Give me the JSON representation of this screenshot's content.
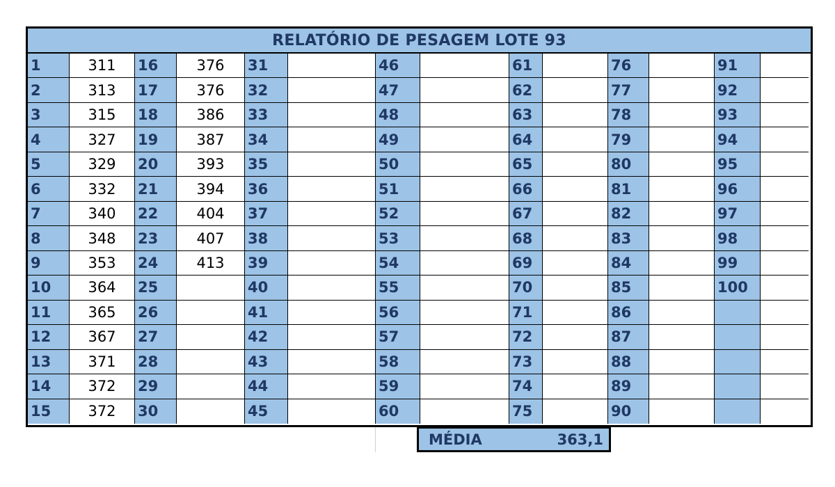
{
  "title": "RELATÓRIO DE PESAGEM LOTE 93",
  "colors": {
    "header_bg": "#9dc3e6",
    "header_text": "#1f3864",
    "border": "#000000"
  },
  "rows": [
    [
      {
        "n": "1",
        "v": "311"
      },
      {
        "n": "16",
        "v": "376"
      },
      {
        "n": "31",
        "v": ""
      },
      {
        "n": "46",
        "v": ""
      },
      {
        "n": "61",
        "v": ""
      },
      {
        "n": "76",
        "v": ""
      },
      {
        "n": "91",
        "v": ""
      }
    ],
    [
      {
        "n": "2",
        "v": "313"
      },
      {
        "n": "17",
        "v": "376"
      },
      {
        "n": "32",
        "v": ""
      },
      {
        "n": "47",
        "v": ""
      },
      {
        "n": "62",
        "v": ""
      },
      {
        "n": "77",
        "v": ""
      },
      {
        "n": "92",
        "v": ""
      }
    ],
    [
      {
        "n": "3",
        "v": "315"
      },
      {
        "n": "18",
        "v": "386"
      },
      {
        "n": "33",
        "v": ""
      },
      {
        "n": "48",
        "v": ""
      },
      {
        "n": "63",
        "v": ""
      },
      {
        "n": "78",
        "v": ""
      },
      {
        "n": "93",
        "v": ""
      }
    ],
    [
      {
        "n": "4",
        "v": "327"
      },
      {
        "n": "19",
        "v": "387"
      },
      {
        "n": "34",
        "v": ""
      },
      {
        "n": "49",
        "v": ""
      },
      {
        "n": "64",
        "v": ""
      },
      {
        "n": "79",
        "v": ""
      },
      {
        "n": "94",
        "v": ""
      }
    ],
    [
      {
        "n": "5",
        "v": "329"
      },
      {
        "n": "20",
        "v": "393"
      },
      {
        "n": "35",
        "v": ""
      },
      {
        "n": "50",
        "v": ""
      },
      {
        "n": "65",
        "v": ""
      },
      {
        "n": "80",
        "v": ""
      },
      {
        "n": "95",
        "v": ""
      }
    ],
    [
      {
        "n": "6",
        "v": "332"
      },
      {
        "n": "21",
        "v": "394"
      },
      {
        "n": "36",
        "v": ""
      },
      {
        "n": "51",
        "v": ""
      },
      {
        "n": "66",
        "v": ""
      },
      {
        "n": "81",
        "v": ""
      },
      {
        "n": "96",
        "v": ""
      }
    ],
    [
      {
        "n": "7",
        "v": "340"
      },
      {
        "n": "22",
        "v": "404"
      },
      {
        "n": "37",
        "v": ""
      },
      {
        "n": "52",
        "v": ""
      },
      {
        "n": "67",
        "v": ""
      },
      {
        "n": "82",
        "v": ""
      },
      {
        "n": "97",
        "v": ""
      }
    ],
    [
      {
        "n": "8",
        "v": "348"
      },
      {
        "n": "23",
        "v": "407"
      },
      {
        "n": "38",
        "v": ""
      },
      {
        "n": "53",
        "v": ""
      },
      {
        "n": "68",
        "v": ""
      },
      {
        "n": "83",
        "v": ""
      },
      {
        "n": "98",
        "v": ""
      }
    ],
    [
      {
        "n": "9",
        "v": "353"
      },
      {
        "n": "24",
        "v": "413"
      },
      {
        "n": "39",
        "v": ""
      },
      {
        "n": "54",
        "v": ""
      },
      {
        "n": "69",
        "v": ""
      },
      {
        "n": "84",
        "v": ""
      },
      {
        "n": "99",
        "v": ""
      }
    ],
    [
      {
        "n": "10",
        "v": "364"
      },
      {
        "n": "25",
        "v": ""
      },
      {
        "n": "40",
        "v": ""
      },
      {
        "n": "55",
        "v": ""
      },
      {
        "n": "70",
        "v": ""
      },
      {
        "n": "85",
        "v": ""
      },
      {
        "n": "100",
        "v": ""
      }
    ],
    [
      {
        "n": "11",
        "v": "365"
      },
      {
        "n": "26",
        "v": ""
      },
      {
        "n": "41",
        "v": ""
      },
      {
        "n": "56",
        "v": ""
      },
      {
        "n": "71",
        "v": ""
      },
      {
        "n": "86",
        "v": ""
      },
      {
        "n": "",
        "v": ""
      }
    ],
    [
      {
        "n": "12",
        "v": "367"
      },
      {
        "n": "27",
        "v": ""
      },
      {
        "n": "42",
        "v": ""
      },
      {
        "n": "57",
        "v": ""
      },
      {
        "n": "72",
        "v": ""
      },
      {
        "n": "87",
        "v": ""
      },
      {
        "n": "",
        "v": ""
      }
    ],
    [
      {
        "n": "13",
        "v": "371"
      },
      {
        "n": "28",
        "v": ""
      },
      {
        "n": "43",
        "v": ""
      },
      {
        "n": "58",
        "v": ""
      },
      {
        "n": "73",
        "v": ""
      },
      {
        "n": "88",
        "v": ""
      },
      {
        "n": "",
        "v": ""
      }
    ],
    [
      {
        "n": "14",
        "v": "372"
      },
      {
        "n": "29",
        "v": ""
      },
      {
        "n": "44",
        "v": ""
      },
      {
        "n": "59",
        "v": ""
      },
      {
        "n": "74",
        "v": ""
      },
      {
        "n": "89",
        "v": ""
      },
      {
        "n": "",
        "v": ""
      }
    ],
    [
      {
        "n": "15",
        "v": "372"
      },
      {
        "n": "30",
        "v": ""
      },
      {
        "n": "45",
        "v": ""
      },
      {
        "n": "60",
        "v": ""
      },
      {
        "n": "75",
        "v": ""
      },
      {
        "n": "90",
        "v": ""
      },
      {
        "n": "",
        "v": ""
      }
    ]
  ],
  "summary": {
    "label": "MÉDIA",
    "value": "363,1"
  }
}
